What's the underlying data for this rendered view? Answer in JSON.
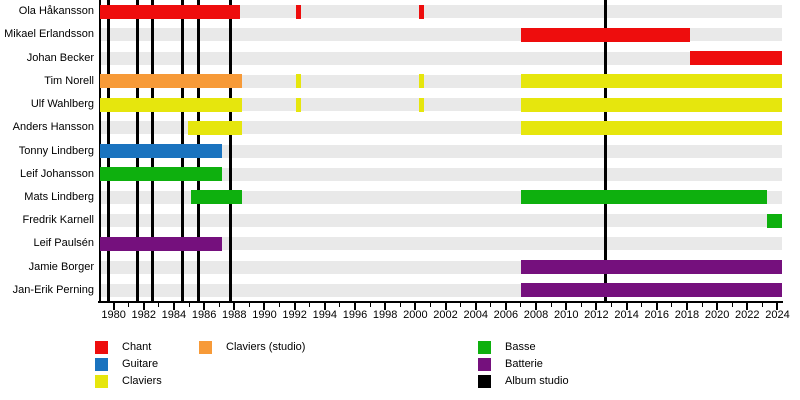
{
  "chart_data": {
    "type": "bar",
    "subtype": "gantt-membership-timeline",
    "title": "",
    "xlabel": "",
    "ylabel": "",
    "grid": false,
    "legend_position": "bottom",
    "axis": {
      "min": 1979.1,
      "max": 2024.3,
      "tick_labels": [
        "1980",
        "1982",
        "1984",
        "1986",
        "1988",
        "1990",
        "1992",
        "1994",
        "1996",
        "1998",
        "2000",
        "2002",
        "2004",
        "2006",
        "2008",
        "2010",
        "2012",
        "2014",
        "2016",
        "2018",
        "2020",
        "2022",
        "2024"
      ],
      "tick_step": 2,
      "minor_tick_step": 1
    },
    "roles": {
      "chant": {
        "label": "Chant",
        "color": "#EE0D0D"
      },
      "guitare": {
        "label": "Guitare",
        "color": "#1A73BF"
      },
      "claviers": {
        "label": "Claviers",
        "color": "#E6E60D"
      },
      "claviers_studio": {
        "label": "Claviers (studio)",
        "color": "#F79A38"
      },
      "basse": {
        "label": "Basse",
        "color": "#0EB00E"
      },
      "batterie": {
        "label": "Batterie",
        "color": "#75107D"
      },
      "album_studio": {
        "label": "Album studio",
        "color": "#000000"
      }
    },
    "album_lines": {
      "role": "album_studio",
      "years": [
        1979.66,
        1981.57,
        1982.56,
        1984.55,
        1985.6,
        1987.75,
        2012.6
      ]
    },
    "members": [
      {
        "name": "Ola Håkansson",
        "segments": [
          {
            "role": "chant",
            "from": 1979.1,
            "to": 1988.4
          },
          {
            "role": "chant",
            "from": 1992.1,
            "to": 1992.4
          },
          {
            "role": "chant",
            "from": 2000.25,
            "to": 2000.55
          }
        ]
      },
      {
        "name": "Mikael Erlandsson",
        "segments": [
          {
            "role": "chant",
            "from": 2007.0,
            "to": 2018.2
          }
        ]
      },
      {
        "name": "Johan Becker",
        "segments": [
          {
            "role": "chant",
            "from": 2018.2,
            "to": 2024.3
          }
        ]
      },
      {
        "name": "Tim Norell",
        "segments": [
          {
            "role": "claviers_studio",
            "from": 1979.1,
            "to": 1988.5
          },
          {
            "role": "claviers",
            "from": 1992.1,
            "to": 1992.4
          },
          {
            "role": "claviers",
            "from": 2000.25,
            "to": 2000.55
          },
          {
            "role": "claviers",
            "from": 2007.0,
            "to": 2024.3
          }
        ]
      },
      {
        "name": "Ulf Wahlberg",
        "segments": [
          {
            "role": "claviers",
            "from": 1979.1,
            "to": 1988.5
          },
          {
            "role": "claviers",
            "from": 1992.1,
            "to": 1992.4
          },
          {
            "role": "claviers",
            "from": 2000.25,
            "to": 2000.55
          },
          {
            "role": "claviers",
            "from": 2007.0,
            "to": 2024.3
          }
        ]
      },
      {
        "name": "Anders Hansson",
        "segments": [
          {
            "role": "claviers",
            "from": 1984.9,
            "to": 1988.5
          },
          {
            "role": "claviers",
            "from": 2007.0,
            "to": 2024.3
          }
        ]
      },
      {
        "name": "Tonny Lindberg",
        "segments": [
          {
            "role": "guitare",
            "from": 1979.1,
            "to": 1987.2
          }
        ]
      },
      {
        "name": "Leif Johansson",
        "segments": [
          {
            "role": "basse",
            "from": 1979.1,
            "to": 1987.2
          }
        ]
      },
      {
        "name": "Mats Lindberg",
        "segments": [
          {
            "role": "basse",
            "from": 1985.1,
            "to": 1988.5
          },
          {
            "role": "basse",
            "from": 2007.0,
            "to": 2023.3
          }
        ]
      },
      {
        "name": "Fredrik Karnell",
        "segments": [
          {
            "role": "basse",
            "from": 2023.3,
            "to": 2024.3
          }
        ]
      },
      {
        "name": "Leif Paulsén",
        "segments": [
          {
            "role": "batterie",
            "from": 1979.1,
            "to": 1987.2
          }
        ]
      },
      {
        "name": "Jamie Borger",
        "segments": [
          {
            "role": "batterie",
            "from": 2007.0,
            "to": 2024.3
          }
        ]
      },
      {
        "name": "Jan-Erik Perning",
        "segments": [
          {
            "role": "batterie",
            "from": 2007.0,
            "to": 2024.3
          }
        ]
      }
    ],
    "legend": {
      "columns": [
        [
          "chant",
          "guitare",
          "claviers"
        ],
        [
          "claviers_studio"
        ],
        [
          "basse",
          "batterie",
          "album_studio"
        ]
      ]
    },
    "colors": {
      "row_band": "#E9E9E9",
      "background": "#FFFFFF",
      "axis": "#000000"
    }
  }
}
